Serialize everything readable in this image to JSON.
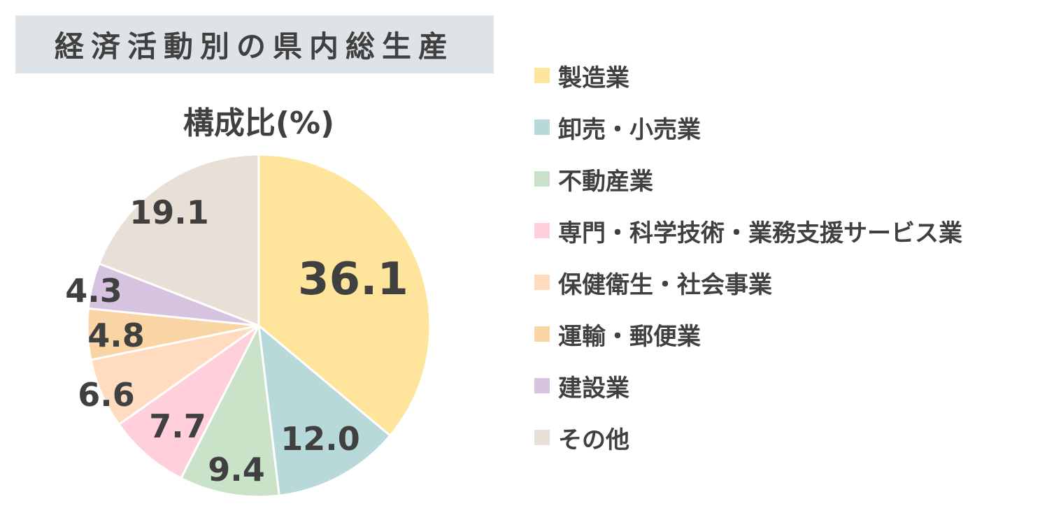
{
  "title": "経済活動別の県内総生産",
  "chart_data": {
    "type": "pie",
    "title": "経済活動別の県内総生産",
    "subtitle": "構成比(%)",
    "legend_position": "right",
    "slices": [
      {
        "label": "製造業",
        "value": 36.1,
        "color": "#fee59b"
      },
      {
        "label": "卸売・小売業",
        "value": 12.0,
        "color": "#b8d9da"
      },
      {
        "label": "不動産業",
        "value": 9.4,
        "color": "#c9e2c8"
      },
      {
        "label": "専門・科学技術・業務支援サービス業",
        "value": 7.7,
        "color": "#ffd0dc"
      },
      {
        "label": "保健衛生・社会事業",
        "value": 6.6,
        "color": "#ffdcbf"
      },
      {
        "label": "運輸・郵便業",
        "value": 4.8,
        "color": "#f9d4a4"
      },
      {
        "label": "建設業",
        "value": 4.3,
        "color": "#d6c3df"
      },
      {
        "label": "その他",
        "value": 19.1,
        "color": "#e8dfd6"
      }
    ]
  }
}
